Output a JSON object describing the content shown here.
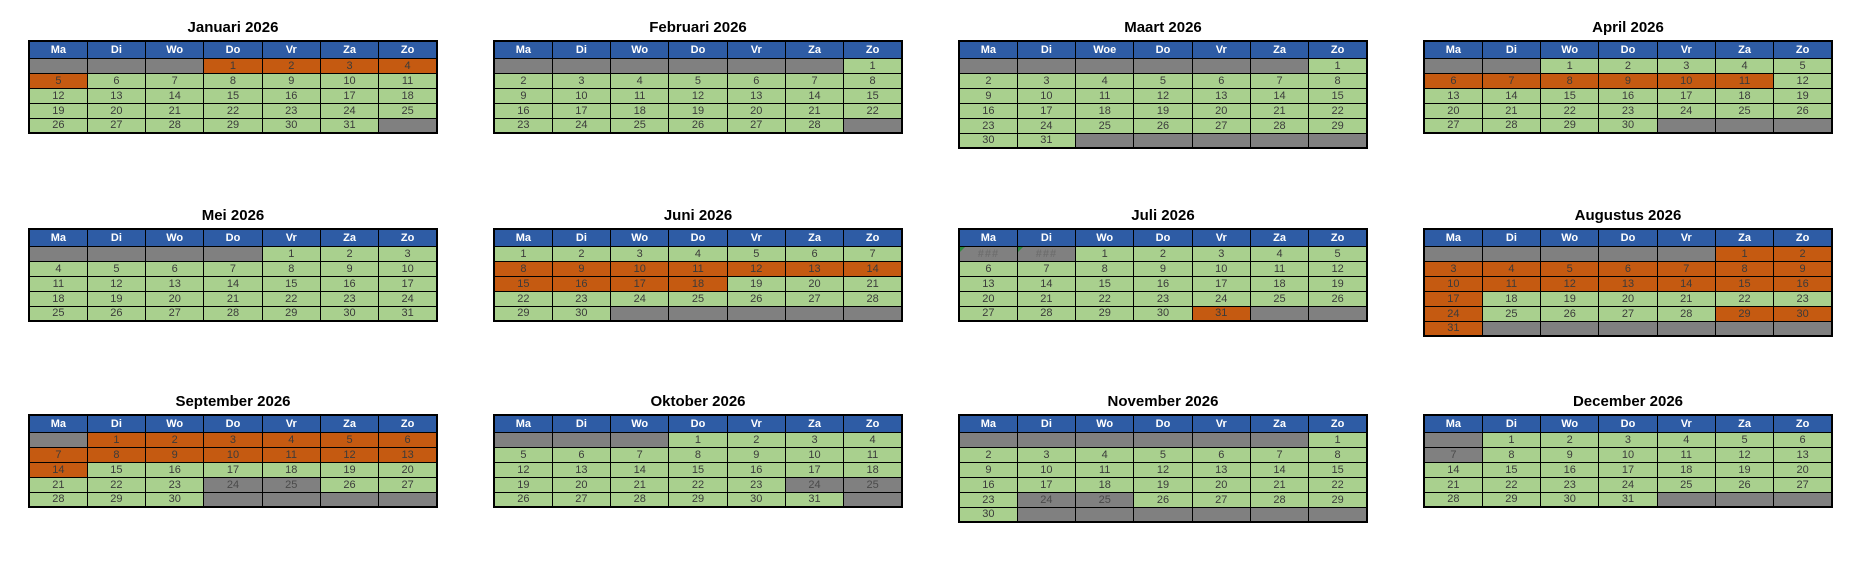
{
  "colors": {
    "header_bg": "#2E5CA5",
    "header_text": "#FFFFFF",
    "day_bg": "#A9D08E",
    "vacation_bg": "#C55A11",
    "empty_bg": "#808080",
    "blocked_bg": "#808080",
    "day_text": "#3B3B3B",
    "title_text": "#000000",
    "grid_border": "#000000",
    "hash_text": "#6E6E6E",
    "error_marker": "#2E8B3E"
  },
  "cell_codes": {
    "g": "day",
    "o": "highlighted-day",
    "x": "empty",
    "b": "blocked-day",
    "h": "overflow"
  },
  "months": [
    {
      "title": "Januari 2026",
      "headers": [
        "Ma",
        "Di",
        "Wo",
        "Do",
        "Vr",
        "Za",
        "Zo"
      ],
      "weeks": [
        [
          "|x",
          "|x",
          "|x",
          "1|o",
          "2|o",
          "3|o",
          "4|o"
        ],
        [
          "5|o",
          "6|g",
          "7|g",
          "8|g",
          "9|g",
          "10|g",
          "11|g"
        ],
        [
          "12|g",
          "13|g",
          "14|g",
          "15|g",
          "16|g",
          "17|g",
          "18|g"
        ],
        [
          "19|g",
          "20|g",
          "21|g",
          "22|g",
          "23|g",
          "24|g",
          "25|g"
        ],
        [
          "26|g",
          "27|g",
          "28|g",
          "29|g",
          "30|g",
          "31|g",
          "|x"
        ]
      ]
    },
    {
      "title": "Februari 2026",
      "headers": [
        "Ma",
        "Di",
        "Wo",
        "Do",
        "Vr",
        "Za",
        "Zo"
      ],
      "weeks": [
        [
          "|x",
          "|x",
          "|x",
          "|x",
          "|x",
          "|x",
          "1|g"
        ],
        [
          "2|g",
          "3|g",
          "4|g",
          "5|g",
          "6|g",
          "7|g",
          "8|g"
        ],
        [
          "9|g",
          "10|g",
          "11|g",
          "12|g",
          "13|g",
          "14|g",
          "15|g"
        ],
        [
          "16|g",
          "17|g",
          "18|g",
          "19|g",
          "20|g",
          "21|g",
          "22|g"
        ],
        [
          "23|g",
          "24|g",
          "25|g",
          "26|g",
          "27|g",
          "28|g",
          "|x"
        ]
      ]
    },
    {
      "title": "Maart 2026",
      "headers": [
        "Ma",
        "Di",
        "Woe",
        "Do",
        "Vr",
        "Za",
        "Zo"
      ],
      "weeks": [
        [
          "|x",
          "|x",
          "|x",
          "|x",
          "|x",
          "|x",
          "1|g"
        ],
        [
          "2|g",
          "3|g",
          "4|g",
          "5|g",
          "6|g",
          "7|g",
          "8|g"
        ],
        [
          "9|g",
          "10|g",
          "11|g",
          "12|g",
          "13|g",
          "14|g",
          "15|g"
        ],
        [
          "16|g",
          "17|g",
          "18|g",
          "19|g",
          "20|g",
          "21|g",
          "22|g"
        ],
        [
          "23|g",
          "24|g",
          "25|g",
          "26|g",
          "27|g",
          "28|g",
          "29|g"
        ],
        [
          "30|g",
          "31|g",
          "|x",
          "|x",
          "|x",
          "|x",
          "|x"
        ]
      ]
    },
    {
      "title": "April 2026",
      "headers": [
        "Ma",
        "Di",
        "Wo",
        "Do",
        "Vr",
        "Za",
        "Zo"
      ],
      "weeks": [
        [
          "|x",
          "|x",
          "1|g",
          "2|g",
          "3|g",
          "4|g",
          "5|g"
        ],
        [
          "6|o",
          "7|o",
          "8|o",
          "9|o",
          "10|o",
          "11|o",
          "12|g"
        ],
        [
          "13|g",
          "14|g",
          "15|g",
          "16|g",
          "17|g",
          "18|g",
          "19|g"
        ],
        [
          "20|g",
          "21|g",
          "22|g",
          "23|g",
          "24|g",
          "25|g",
          "26|g"
        ],
        [
          "27|g",
          "28|g",
          "29|g",
          "30|g",
          "|x",
          "|x",
          "|x"
        ]
      ]
    },
    {
      "title": "Mei 2026",
      "headers": [
        "Ma",
        "Di",
        "Wo",
        "Do",
        "Vr",
        "Za",
        "Zo"
      ],
      "weeks": [
        [
          "|x",
          "|x",
          "|x",
          "|x",
          "1|g",
          "2|g",
          "3|g"
        ],
        [
          "4|g",
          "5|g",
          "6|g",
          "7|g",
          "8|g",
          "9|g",
          "10|g"
        ],
        [
          "11|g",
          "12|g",
          "13|g",
          "14|g",
          "15|g",
          "16|g",
          "17|g"
        ],
        [
          "18|g",
          "19|g",
          "20|g",
          "21|g",
          "22|g",
          "23|g",
          "24|g"
        ],
        [
          "25|g",
          "26|g",
          "27|g",
          "28|g",
          "29|g",
          "30|g",
          "31|g"
        ]
      ]
    },
    {
      "title": "Juni 2026",
      "headers": [
        "Ma",
        "Di",
        "Wo",
        "Do",
        "Vr",
        "Za",
        "Zo"
      ],
      "weeks": [
        [
          "1|g",
          "2|g",
          "3|g",
          "4|g",
          "5|g",
          "6|g",
          "7|g"
        ],
        [
          "8|o",
          "9|o",
          "10|o",
          "11|o",
          "12|o",
          "13|o",
          "14|o"
        ],
        [
          "15|o",
          "16|o",
          "17|o",
          "18|o",
          "19|g",
          "20|g",
          "21|g"
        ],
        [
          "22|g",
          "23|g",
          "24|g",
          "25|g",
          "26|g",
          "27|g",
          "28|g"
        ],
        [
          "29|g",
          "30|g",
          "|x",
          "|x",
          "|x",
          "|x",
          "|x"
        ]
      ]
    },
    {
      "title": "Juli 2026",
      "headers": [
        "Ma",
        "Di",
        "Wo",
        "Do",
        "Vr",
        "Za",
        "Zo"
      ],
      "weeks": [
        [
          "###|h",
          "###|h",
          "1|g",
          "2|g",
          "3|g",
          "4|g",
          "5|g"
        ],
        [
          "6|g",
          "7|g",
          "8|g",
          "9|g",
          "10|g",
          "11|g",
          "12|g"
        ],
        [
          "13|g",
          "14|g",
          "15|g",
          "16|g",
          "17|g",
          "18|g",
          "19|g"
        ],
        [
          "20|g",
          "21|g",
          "22|g",
          "23|g",
          "24|g",
          "25|g",
          "26|g"
        ],
        [
          "27|g",
          "28|g",
          "29|g",
          "30|g",
          "31|o",
          "|x",
          "|x"
        ]
      ]
    },
    {
      "title": "Augustus 2026",
      "headers": [
        "Ma",
        "Di",
        "Wo",
        "Do",
        "Vr",
        "Za",
        "Zo"
      ],
      "weeks": [
        [
          "|x",
          "|x",
          "|x",
          "|x",
          "|x",
          "1|o",
          "2|o"
        ],
        [
          "3|o",
          "4|o",
          "5|o",
          "6|o",
          "7|o",
          "8|o",
          "9|o"
        ],
        [
          "10|o",
          "11|o",
          "12|o",
          "13|o",
          "14|o",
          "15|o",
          "16|o"
        ],
        [
          "17|o",
          "18|g",
          "19|g",
          "20|g",
          "21|g",
          "22|g",
          "23|g"
        ],
        [
          "24|o",
          "25|g",
          "26|g",
          "27|g",
          "28|g",
          "29|o",
          "30|o"
        ],
        [
          "31|o",
          "|x",
          "|x",
          "|x",
          "|x",
          "|x",
          "|x"
        ]
      ]
    },
    {
      "title": "September 2026",
      "headers": [
        "Ma",
        "Di",
        "Wo",
        "Do",
        "Vr",
        "Za",
        "Zo"
      ],
      "weeks": [
        [
          "|x",
          "1|o",
          "2|o",
          "3|o",
          "4|o",
          "5|o",
          "6|o"
        ],
        [
          "7|o",
          "8|o",
          "9|o",
          "10|o",
          "11|o",
          "12|o",
          "13|o"
        ],
        [
          "14|o",
          "15|g",
          "16|g",
          "17|g",
          "18|g",
          "19|g",
          "20|g"
        ],
        [
          "21|g",
          "22|g",
          "23|g",
          "24|b",
          "25|b",
          "26|g",
          "27|g"
        ],
        [
          "28|g",
          "29|g",
          "30|g",
          "|x",
          "|x",
          "|x",
          "|x"
        ]
      ]
    },
    {
      "title": "Oktober 2026",
      "headers": [
        "Ma",
        "Di",
        "Wo",
        "Do",
        "Vr",
        "Za",
        "Zo"
      ],
      "weeks": [
        [
          "|x",
          "|x",
          "|x",
          "1|g",
          "2|g",
          "3|g",
          "4|g"
        ],
        [
          "5|g",
          "6|g",
          "7|g",
          "8|g",
          "9|g",
          "10|g",
          "11|g"
        ],
        [
          "12|g",
          "13|g",
          "14|g",
          "15|g",
          "16|g",
          "17|g",
          "18|g"
        ],
        [
          "19|g",
          "20|g",
          "21|g",
          "22|g",
          "23|g",
          "24|b",
          "25|b"
        ],
        [
          "26|g",
          "27|g",
          "28|g",
          "29|g",
          "30|g",
          "31|g",
          "|x"
        ]
      ]
    },
    {
      "title": "November 2026",
      "headers": [
        "Ma",
        "Di",
        "Wo",
        "Do",
        "Vr",
        "Za",
        "Zo"
      ],
      "weeks": [
        [
          "|x",
          "|x",
          "|x",
          "|x",
          "|x",
          "|x",
          "1|g"
        ],
        [
          "2|g",
          "3|g",
          "4|g",
          "5|g",
          "6|g",
          "7|g",
          "8|g"
        ],
        [
          "9|g",
          "10|g",
          "11|g",
          "12|g",
          "13|g",
          "14|g",
          "15|g"
        ],
        [
          "16|g",
          "17|g",
          "18|g",
          "19|g",
          "20|g",
          "21|g",
          "22|g"
        ],
        [
          "23|g",
          "24|b",
          "25|b",
          "26|g",
          "27|g",
          "28|g",
          "29|g"
        ],
        [
          "30|g",
          "|x",
          "|x",
          "|x",
          "|x",
          "|x",
          "|x"
        ]
      ]
    },
    {
      "title": "December 2026",
      "headers": [
        "Ma",
        "Di",
        "Wo",
        "Do",
        "Vr",
        "Za",
        "Zo"
      ],
      "weeks": [
        [
          "|x",
          "1|g",
          "2|g",
          "3|g",
          "4|g",
          "5|g",
          "6|g"
        ],
        [
          "7|b",
          "8|g",
          "9|g",
          "10|g",
          "11|g",
          "12|g",
          "13|g"
        ],
        [
          "14|g",
          "15|g",
          "16|g",
          "17|g",
          "18|g",
          "19|g",
          "20|g"
        ],
        [
          "21|g",
          "22|g",
          "23|g",
          "24|g",
          "25|g",
          "26|g",
          "27|g"
        ],
        [
          "28|g",
          "29|g",
          "30|g",
          "31|g",
          "|x",
          "|x",
          "|x"
        ]
      ]
    }
  ]
}
